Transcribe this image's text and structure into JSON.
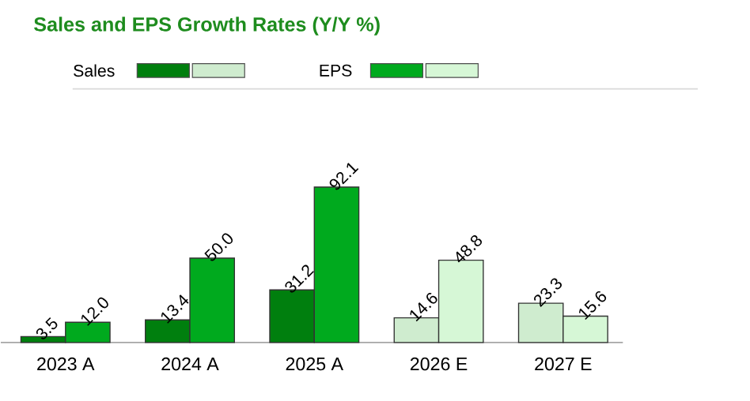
{
  "chart_data": {
    "type": "bar",
    "title": "Sales and EPS Growth Rates (Y/Y %)",
    "categories": [
      "2023 A",
      "2024 A",
      "2025 A",
      "2026 E",
      "2027 E"
    ],
    "series": [
      {
        "name": "Sales",
        "colors": [
          "#007f0e",
          "#007f0e",
          "#007f0e",
          "#cfeccf",
          "#cfeccf"
        ],
        "values": [
          3.5,
          13.4,
          31.2,
          14.6,
          23.3
        ],
        "value_labels": [
          "3.5",
          "13.4",
          "31.2",
          "14.6",
          "23.3"
        ]
      },
      {
        "name": "EPS",
        "colors": [
          "#00aa1e",
          "#00aa1e",
          "#00aa1e",
          "#d6f7d6",
          "#d6f7d6"
        ],
        "values": [
          12.0,
          50.0,
          92.1,
          48.8,
          15.6
        ],
        "value_labels": [
          "12.0",
          "50.0",
          "92.1",
          "48.8",
          "15.6"
        ]
      }
    ],
    "legend": "top left"
  }
}
